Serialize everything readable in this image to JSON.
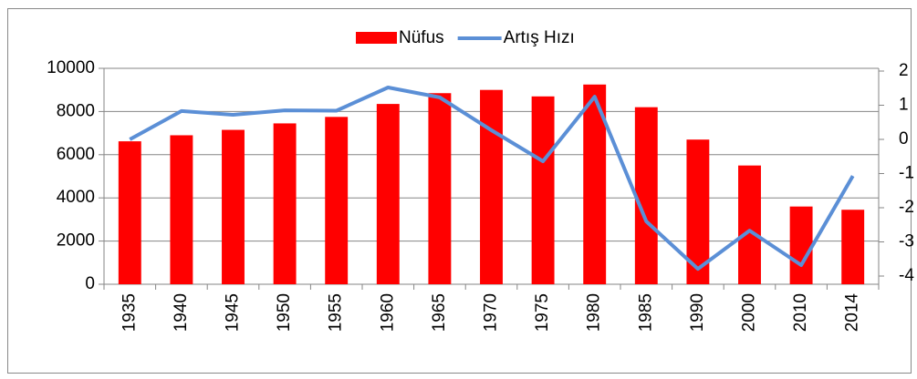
{
  "chart_data": {
    "type": "bar-line",
    "categories": [
      "1935",
      "1940",
      "1945",
      "1950",
      "1955",
      "1960",
      "1965",
      "1970",
      "1975",
      "1980",
      "1985",
      "1990",
      "2000",
      "2010",
      "2014"
    ],
    "series": [
      {
        "name": "Nüfus",
        "type": "bar",
        "color": "#ff0000",
        "values": [
          6620,
          6900,
          7150,
          7450,
          7750,
          8350,
          8850,
          9000,
          8700,
          9250,
          8200,
          6700,
          5500,
          3600,
          3450
        ]
      },
      {
        "name": "Artış Hızı",
        "type": "line",
        "axis": "y2",
        "color": "#5b8fd6",
        "values": [
          0.0,
          0.83,
          0.72,
          0.85,
          0.84,
          1.52,
          1.23,
          0.27,
          -0.64,
          1.25,
          -2.4,
          -3.79,
          -2.67,
          -3.68,
          -1.07
        ]
      }
    ],
    "ylim": [
      0,
      10000
    ],
    "yticks": [
      0,
      2000,
      4000,
      6000,
      8000,
      10000
    ],
    "y2lim": [
      -4.24,
      2.08
    ],
    "y2ticks": [
      -4,
      -3,
      -2,
      -1,
      0,
      1,
      2
    ],
    "grid": true,
    "legend": "top"
  }
}
